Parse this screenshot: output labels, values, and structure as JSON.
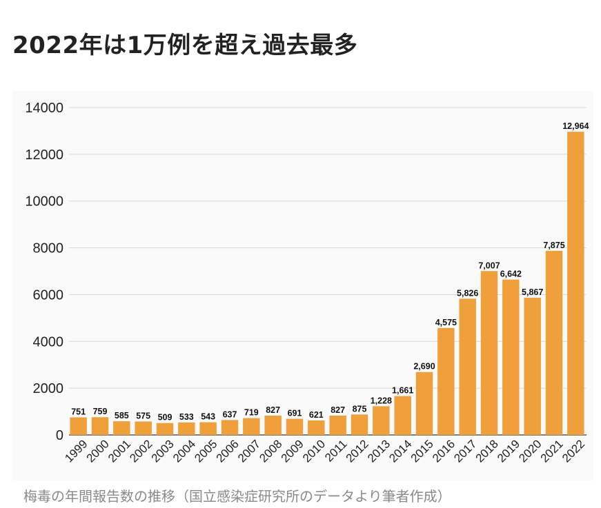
{
  "title": "2022年は1万例を超え過去最多",
  "caption": "梅毒の年間報告数の推移（国立感染症研究所のデータより筆者作成）",
  "colors": {
    "bar": "#F0A03A",
    "grid": "#d8d8d8",
    "axis": "#333333",
    "label": "#111111"
  },
  "chart_data": {
    "type": "bar",
    "title": "",
    "xlabel": "",
    "ylabel": "",
    "ylim": [
      0,
      14000
    ],
    "yticks": [
      0,
      2000,
      4000,
      6000,
      8000,
      10000,
      12000,
      14000
    ],
    "grid": true,
    "categories": [
      "1999",
      "2000",
      "2001",
      "2002",
      "2003",
      "2004",
      "2005",
      "2006",
      "2007",
      "2008",
      "2009",
      "2010",
      "2011",
      "2012",
      "2013",
      "2014",
      "2015",
      "2016",
      "2017",
      "2018",
      "2019",
      "2020",
      "2021",
      "2022"
    ],
    "values": [
      751,
      759,
      585,
      575,
      509,
      533,
      543,
      637,
      719,
      827,
      691,
      621,
      827,
      875,
      1228,
      1661,
      2690,
      4575,
      5826,
      7007,
      6642,
      5867,
      7875,
      12964
    ],
    "value_labels": [
      "751",
      "759",
      "585",
      "575",
      "509",
      "533",
      "543",
      "637",
      "719",
      "827",
      "691",
      "621",
      "827",
      "875",
      "1,228",
      "1,661",
      "2,690",
      "4,575",
      "5,826",
      "7,007",
      "6,642",
      "5,867",
      "7,875",
      "12,964"
    ]
  }
}
